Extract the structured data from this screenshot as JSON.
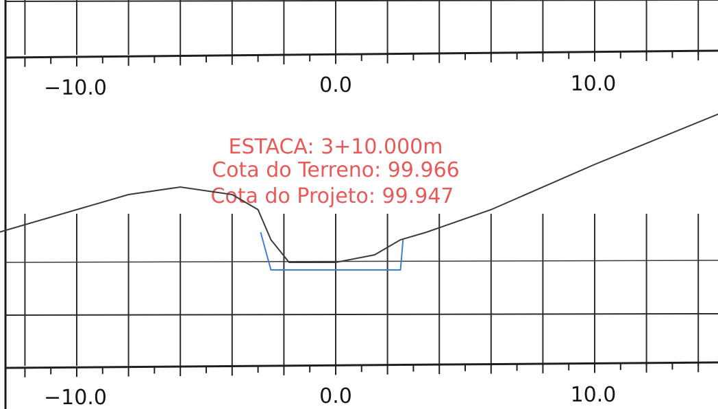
{
  "annotation": {
    "station": "ESTACA: 3+10.000m",
    "ground_elevation": "Cota do Terreno:  99.966",
    "design_elevation": "Cota do Projeto: 99.947"
  },
  "axis_labels": {
    "top": [
      "−10.0",
      "0.0",
      "10.0"
    ],
    "bottom": [
      "−10.0",
      "0.0",
      "10.0"
    ]
  },
  "colors": {
    "annotation": "#e85a5a",
    "terrain": "#3a3a3a",
    "project": "#3c7fd4",
    "grid": "#2c2c2c"
  },
  "chart_data": {
    "type": "line",
    "x_ticks": [
      -10.0,
      0.0,
      10.0
    ],
    "series": [
      {
        "x": [
          -13,
          -8,
          -6,
          -4,
          -3,
          -2.5,
          -1.8,
          0,
          1.5,
          2.5,
          3.5,
          6,
          10,
          15
        ],
        "y": [
          99.97,
          100.02,
          100.03,
          100.02,
          100.0,
          99.96,
          99.93,
          99.93,
          99.94,
          99.96,
          99.97,
          100.0,
          100.06,
          100.13
        ]
      },
      {
        "x": [
          -2.9,
          -2.5,
          2.5,
          2.6
        ],
        "y": [
          99.97,
          99.92,
          99.92,
          99.96
        ]
      }
    ],
    "grid": true
  }
}
